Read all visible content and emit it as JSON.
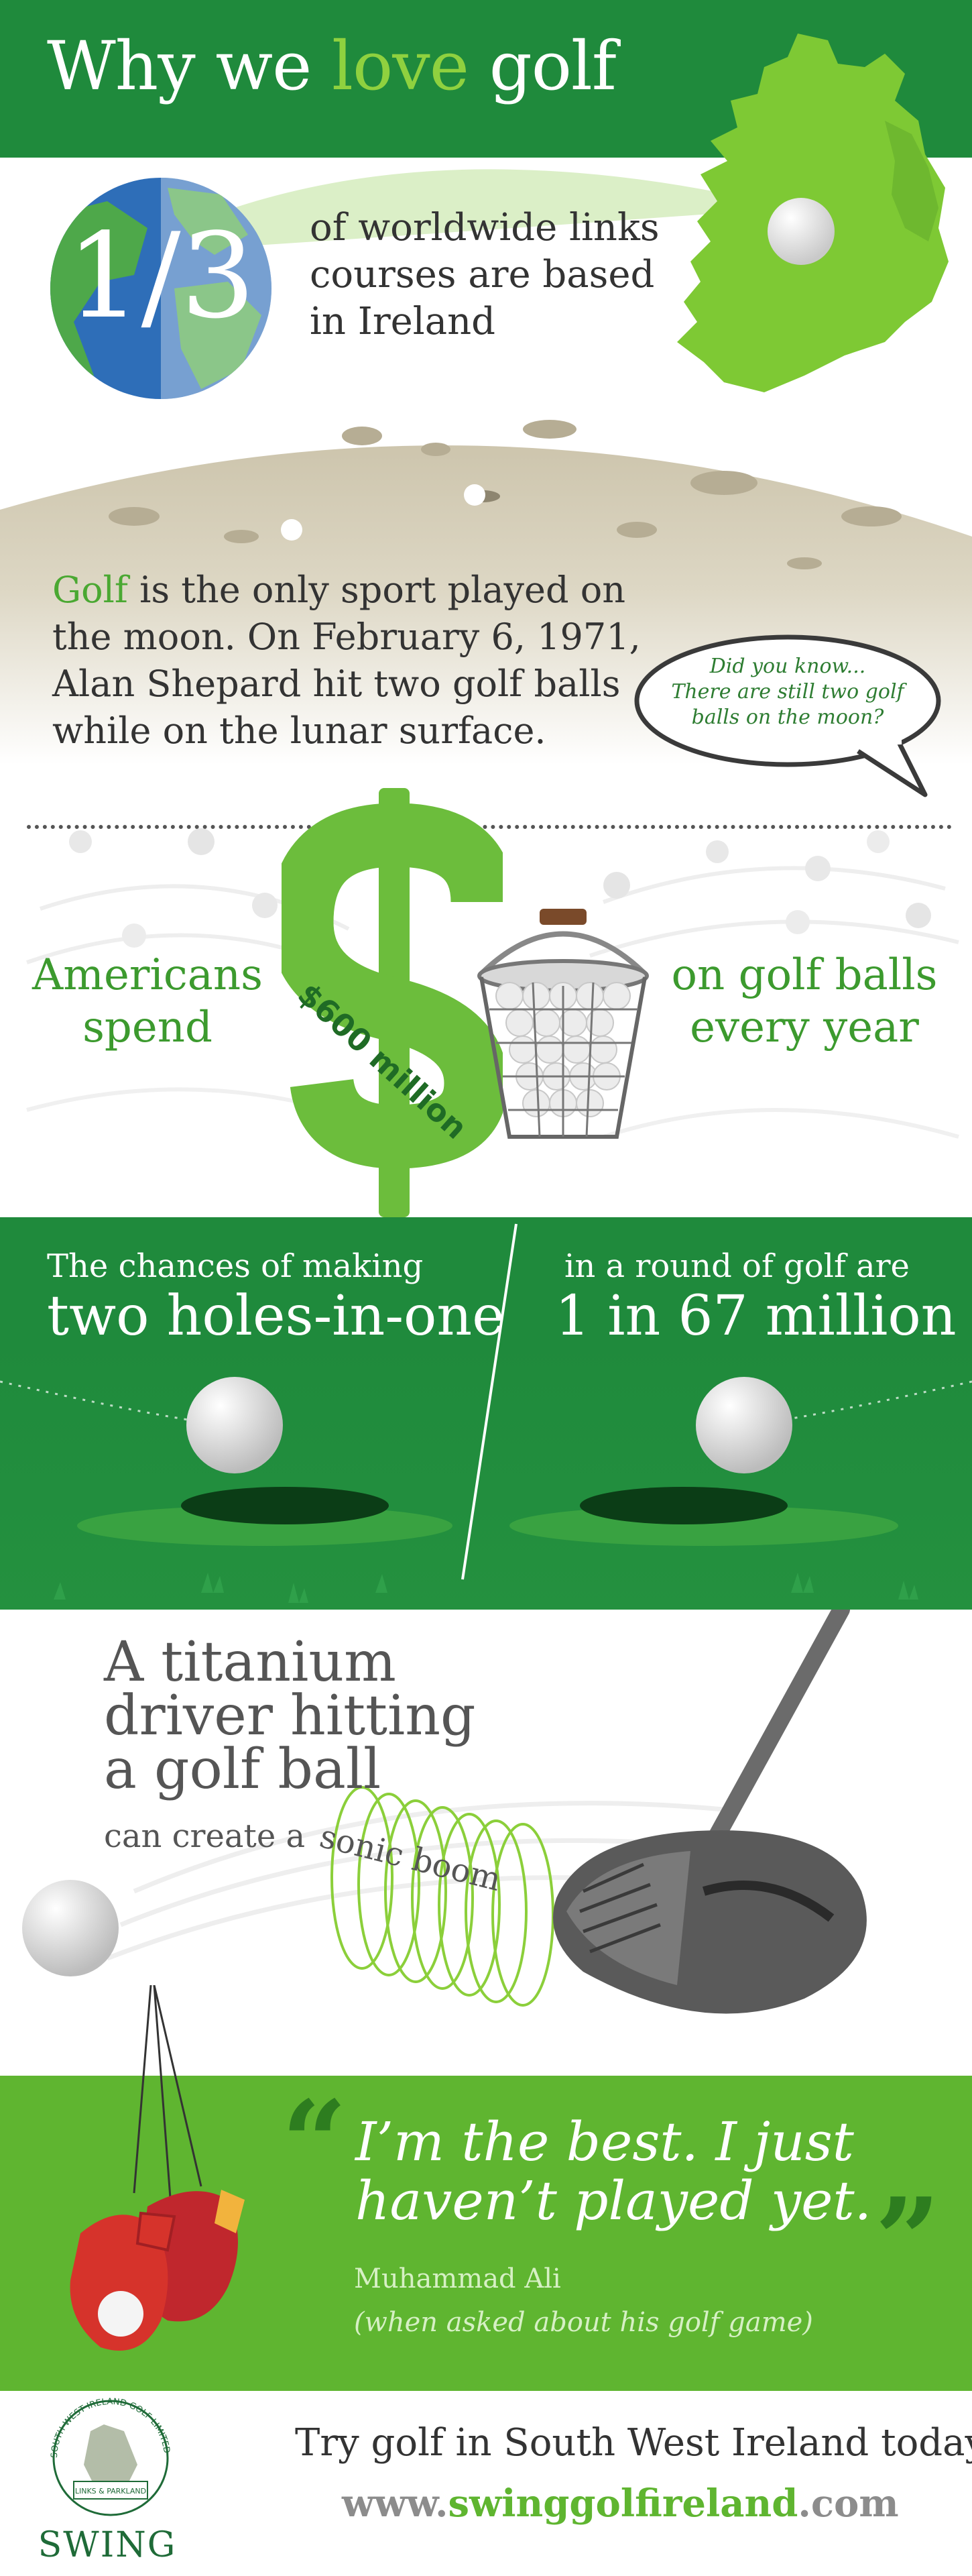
{
  "header": {
    "title_prefix": "Why we ",
    "title_highlight": "love",
    "title_suffix": " golf"
  },
  "stat_links": {
    "fraction": "1/3",
    "text": "of worldwide links courses are based in Ireland"
  },
  "stat_moon": {
    "highlight": "Golf",
    "text": " is the only sport played on the moon. On February 6, 1971, Alan Shepard hit two golf balls while on the lunar surface.",
    "bubble_title": "Did you know...",
    "bubble_text": "There are still two golf balls on the moon?"
  },
  "stat_spend": {
    "left_text": "Americans spend",
    "amount": "$600 million",
    "right_text": "on golf balls every year"
  },
  "stat_holes": {
    "left_line1": "The chances of making",
    "left_line2": "two holes-in-one",
    "right_line1": "in a round of golf are",
    "right_line2": "1 in 67 million"
  },
  "stat_sonic": {
    "line1": "A titanium",
    "line2": "driver hitting",
    "line3": "a golf ball",
    "line4": "can create a",
    "curve_text": "sonic boom"
  },
  "quote": {
    "text": "I’m the best. I just haven’t played yet.",
    "author": "Muhammad Ali",
    "context": "(when asked about his golf game)",
    "open_mark": "“",
    "close_mark": "”"
  },
  "footer": {
    "tagline": "Try golf in South West Ireland today",
    "url_prefix": "www.",
    "url_highlight": "swinggolfireland",
    "url_suffix": ".com",
    "logo_name": "SWING",
    "logo_ring_text": "SOUTH WEST IRELAND GOLF LIMITED",
    "logo_badge": "LINKS & PARKLAND"
  },
  "colors": {
    "dark_green": "#1f8a3c",
    "light_green": "#8fd13f",
    "mid_green": "#5fb530",
    "text_dark": "#333333"
  }
}
